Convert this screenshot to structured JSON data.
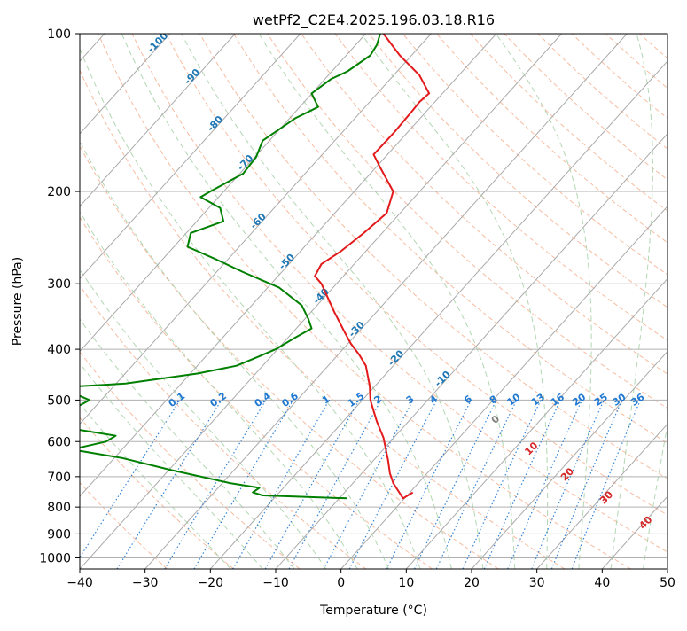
{
  "chart_data": {
    "type": "line",
    "subtype": "skew-t log-p diagram",
    "title": "wetPf2_C2E4.2025.196.03.18.R16",
    "xlabel": "Temperature (°C)",
    "ylabel": "Pressure (hPa)",
    "xlim": [
      -40,
      50
    ],
    "ylim": [
      1050,
      100
    ],
    "y_scale": "log",
    "x_ticks": [
      -40,
      -30,
      -20,
      -10,
      0,
      10,
      20,
      30,
      40,
      50
    ],
    "y_ticks": [
      100,
      200,
      300,
      400,
      500,
      600,
      700,
      800,
      900,
      1000
    ],
    "grid": true,
    "series": [
      {
        "role": "temperature",
        "color": "#e31a1c",
        "points": [
          [
            11,
            750
          ],
          [
            9.5,
            770
          ],
          [
            8.0,
            720
          ],
          [
            7.5,
            690
          ],
          [
            7.2,
            650
          ],
          [
            6.5,
            590
          ],
          [
            5.5,
            550
          ],
          [
            4.5,
            500
          ],
          [
            4.4,
            470
          ],
          [
            3.8,
            430
          ],
          [
            2.8,
            410
          ],
          [
            1.5,
            390
          ],
          [
            0.5,
            370
          ],
          [
            -1.0,
            340
          ],
          [
            -3.0,
            300
          ],
          [
            -4.0,
            290
          ],
          [
            -3.0,
            275
          ],
          [
            0,
            260
          ],
          [
            3.5,
            240
          ],
          [
            7.0,
            220
          ],
          [
            8.0,
            200
          ],
          [
            6.0,
            180
          ],
          [
            5.0,
            170
          ],
          [
            8.0,
            155
          ],
          [
            11.0,
            140
          ],
          [
            12.0,
            135
          ],
          [
            13.5,
            130
          ],
          [
            12.0,
            120
          ],
          [
            9.0,
            110
          ],
          [
            6.5,
            100
          ]
        ]
      },
      {
        "role": "dewpoint",
        "color": "#008000",
        "points": [
          [
            1.0,
            770
          ],
          [
            -12.0,
            760
          ],
          [
            -13.5,
            750
          ],
          [
            -12.5,
            735
          ],
          [
            -17.0,
            720
          ],
          [
            -26.0,
            680
          ],
          [
            -33.5,
            645
          ],
          [
            -40.0,
            625
          ],
          [
            -41.0,
            620
          ],
          [
            -36.0,
            600
          ],
          [
            -34.5,
            585
          ],
          [
            -40.0,
            570
          ],
          [
            -41.0,
            560
          ],
          [
            -44.0,
            530
          ],
          [
            -41.0,
            520
          ],
          [
            -38.5,
            500
          ],
          [
            -41.0,
            485
          ],
          [
            -46.0,
            475
          ],
          [
            -33.0,
            465
          ],
          [
            -22.0,
            445
          ],
          [
            -16.0,
            430
          ],
          [
            -13.0,
            415
          ],
          [
            -10.0,
            400
          ],
          [
            -7.0,
            380
          ],
          [
            -4.5,
            365
          ],
          [
            -5.0,
            350
          ],
          [
            -6.0,
            330
          ],
          [
            -9.5,
            305
          ],
          [
            -15.0,
            285
          ],
          [
            -19.0,
            270
          ],
          [
            -23.5,
            255
          ],
          [
            -23.0,
            240
          ],
          [
            -18.0,
            228
          ],
          [
            -18.5,
            215
          ],
          [
            -21.5,
            205
          ],
          [
            -20.0,
            200
          ],
          [
            -15.0,
            185
          ],
          [
            -13.0,
            172
          ],
          [
            -12.0,
            160
          ],
          [
            -7.0,
            145
          ],
          [
            -3.5,
            138
          ],
          [
            -4.5,
            130
          ],
          [
            -1.5,
            122
          ],
          [
            1.0,
            118
          ],
          [
            4.5,
            110
          ],
          [
            5.5,
            105
          ],
          [
            6.0,
            100
          ]
        ]
      }
    ],
    "isotherm_labels": [
      "-100",
      "-90",
      "-80",
      "-70",
      "-60",
      "-50",
      "-40",
      "-30",
      "-20",
      "-10"
    ],
    "mixing_ratio_labels": [
      "0.1",
      "0.2",
      "0.4",
      "0.6",
      "1",
      "1.5",
      "2",
      "3",
      "4",
      "6",
      "8",
      "10",
      "13",
      "16",
      "20",
      "25",
      "30",
      "36"
    ],
    "moist_adiabat_labels": [
      "0",
      "10",
      "20",
      "30",
      "40"
    ],
    "colors": {
      "isotherm": "#aaaaaa",
      "dry_adiabat": "#f4a582",
      "moist_adiabat": "#a6d0a6",
      "mixing_ratio": "#1f78d1",
      "isotherm_label": "#1f77b4",
      "moist_label": "#d62728",
      "zero_label": "#808080"
    }
  }
}
